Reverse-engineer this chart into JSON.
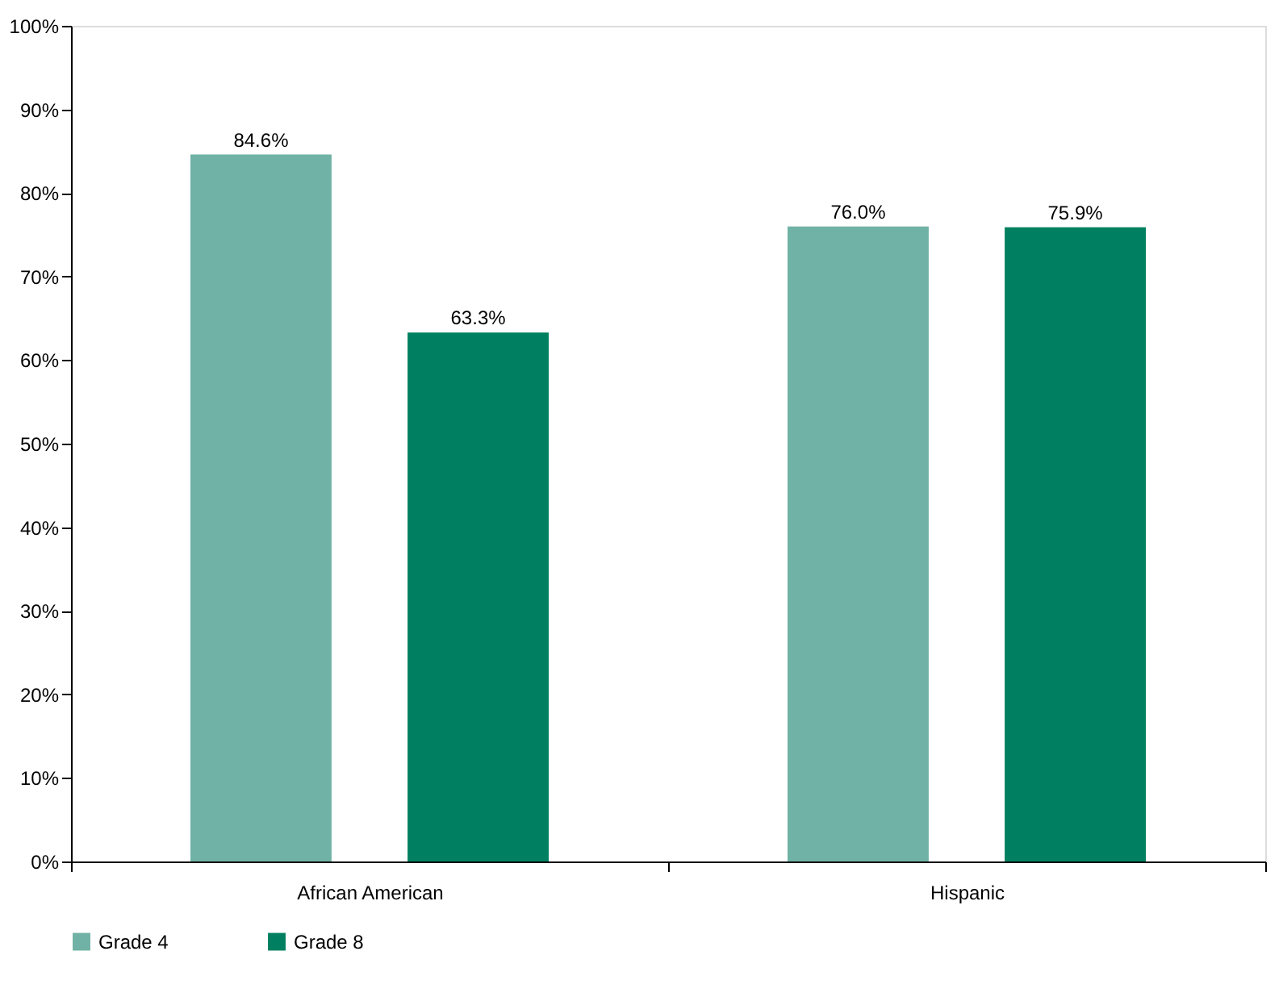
{
  "chart_data": {
    "type": "bar",
    "categories": [
      "African American",
      "Hispanic"
    ],
    "series": [
      {
        "name": "Grade 4",
        "color": "#70b2a5",
        "values": [
          84.6,
          76.0
        ],
        "value_labels": [
          "84.6%",
          "76.0%"
        ]
      },
      {
        "name": "Grade 8",
        "color": "#008060",
        "values": [
          63.3,
          75.9
        ],
        "value_labels": [
          "63.3%",
          "75.9%"
        ]
      }
    ],
    "ylim": [
      0,
      100
    ],
    "yticks": [
      {
        "value": 0,
        "label": "0%"
      },
      {
        "value": 10,
        "label": "10%"
      },
      {
        "value": 20,
        "label": "20%"
      },
      {
        "value": 30,
        "label": "30%"
      },
      {
        "value": 40,
        "label": "40%"
      },
      {
        "value": 50,
        "label": "50%"
      },
      {
        "value": 60,
        "label": "60%"
      },
      {
        "value": 70,
        "label": "70%"
      },
      {
        "value": 80,
        "label": "80%"
      },
      {
        "value": 90,
        "label": "90%"
      },
      {
        "value": 100,
        "label": "100%"
      }
    ],
    "grid": false,
    "legend": "bottom"
  }
}
